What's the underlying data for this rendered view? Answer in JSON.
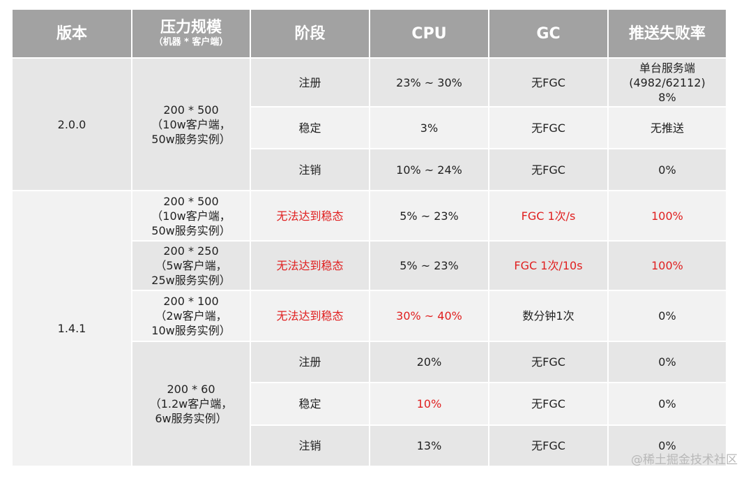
{
  "header": {
    "version": "版本",
    "scale": "压力规模",
    "scale_sub": "（机器 * 客户端）",
    "stage": "阶段",
    "cpu": "CPU",
    "gc": "GC",
    "fail_rate": "推送失败率"
  },
  "groups": [
    {
      "version": "2.0.0",
      "scale": [
        "200 * 500",
        "（10w客户端，",
        "50w服务实例）"
      ],
      "rows": [
        {
          "stage": "注册",
          "cpu": "23% ~ 30%",
          "gc": "无FGC",
          "fail": [
            "单台服务端",
            "(4982/62112)",
            "8%"
          ]
        },
        {
          "stage": "稳定",
          "cpu": "3%",
          "gc": "无FGC",
          "fail": [
            "无推送"
          ]
        },
        {
          "stage": "注销",
          "cpu": "10% ~ 24%",
          "gc": "无FGC",
          "fail": [
            "0%"
          ]
        }
      ]
    },
    {
      "version": "1.4.1",
      "blocks": [
        {
          "scale": [
            "200 * 500",
            "（10w客户端，",
            "50w服务实例）"
          ],
          "stage": "无法达到稳态",
          "cpu": "5% ~ 23%",
          "gc": "FGC 1次/s",
          "fail": "100%"
        },
        {
          "scale": [
            "200 * 250",
            "（5w客户端，",
            "25w服务实例）"
          ],
          "stage": "无法达到稳态",
          "cpu": "5% ~ 23%",
          "gc": "FGC 1次/10s",
          "fail": "100%"
        },
        {
          "scale": [
            "200 * 100",
            "（2w客户端，",
            "10w服务实例）"
          ],
          "stage": "无法达到稳态",
          "cpu": "30% ~ 40%",
          "gc": "数分钟1次",
          "fail": "0%"
        }
      ],
      "last": {
        "scale": [
          "200 * 60",
          "（1.2w客户端，",
          "6w服务实例）"
        ],
        "rows": [
          {
            "stage": "注册",
            "cpu": "20%",
            "gc": "无FGC",
            "fail": "0%"
          },
          {
            "stage": "稳定",
            "cpu": "10%",
            "gc": "无FGC",
            "fail": "0%"
          },
          {
            "stage": "注销",
            "cpu": "13%",
            "gc": "无FGC",
            "fail": "0%"
          }
        ]
      }
    }
  ],
  "colors": {
    "header_bg": "#a2a2a2",
    "cell_dark": "#e6e6e6",
    "cell_light": "#f2f2f2",
    "highlight": "#e02020"
  },
  "watermark": "@稀土掘金技术社区"
}
